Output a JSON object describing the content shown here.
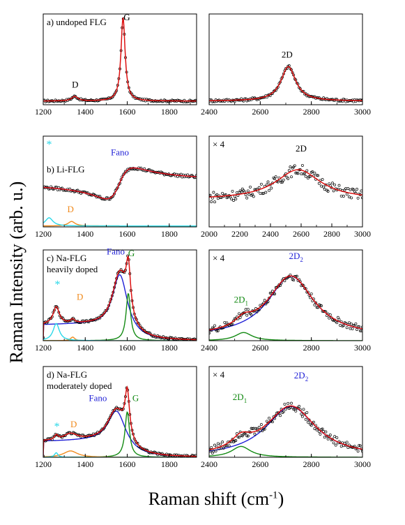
{
  "figure": {
    "ylabel": "Raman Intensity (arb. u.)",
    "xlabel_main": "Raman shift (cm",
    "xlabel_sup": "-1",
    "xlabel_end": ")"
  },
  "colors": {
    "data_points": "#000000",
    "fit_total": "#dd1111",
    "fano": "#1f1fd6",
    "lorentz_G": "#138a13",
    "D_band": "#f08a1c",
    "star_peak": "#2ad8e8"
  },
  "chart_data": [
    {
      "id": "a-left",
      "type": "line",
      "label": "a) undoped FLG",
      "xlim": [
        1200,
        1930
      ],
      "xticks": [
        1200,
        1400,
        1600,
        1800
      ],
      "annotations": [
        {
          "text": "D",
          "x": 1352,
          "y": 0.19
        },
        {
          "text": "G",
          "x": 1598,
          "y": 0.93
        }
      ],
      "series": [
        {
          "role": "data",
          "peaks": [
            [
              1580,
              12,
              0.92
            ],
            [
              1350,
              18,
              0.05
            ]
          ],
          "baseline": 0.04,
          "noise": 0.01
        },
        {
          "role": "fit",
          "peaks": [
            [
              1580,
              12,
              0.92
            ],
            [
              1350,
              18,
              0.05
            ]
          ],
          "baseline": 0.04
        }
      ]
    },
    {
      "id": "a-right",
      "type": "line",
      "label": "",
      "xlim": [
        2400,
        3000
      ],
      "xticks": [
        2400,
        2600,
        2800,
        3000
      ],
      "annotations": [
        {
          "text": "2D",
          "x": 2705,
          "y": 0.52
        }
      ],
      "series": [
        {
          "role": "data",
          "peaks": [
            [
              2710,
              35,
              0.38
            ]
          ],
          "baseline": 0.04,
          "noise": 0.015
        },
        {
          "role": "fit",
          "peaks": [
            [
              2710,
              35,
              0.38
            ]
          ],
          "baseline": 0.04
        }
      ]
    },
    {
      "id": "b-left",
      "type": "line",
      "label": "b) Li-FLG",
      "xlim": [
        1200,
        1930
      ],
      "xticks": [
        1200,
        1400,
        1600,
        1800
      ],
      "annotations": [
        {
          "text": "Fano",
          "x": 1565,
          "y": 0.79,
          "color": "fano"
        },
        {
          "text": "D",
          "x": 1330,
          "y": 0.16,
          "color": "D_band"
        },
        {
          "text": "*",
          "x": 1228,
          "y": 0.87,
          "color": "star_peak"
        }
      ],
      "series": [
        {
          "role": "data",
          "fano": {
            "x0": 1560,
            "w": 65,
            "q": -1.1,
            "A": 0.28,
            "off": 0.6
          },
          "noise": 0.015
        },
        {
          "role": "fano",
          "fano": {
            "x0": 1560,
            "w": 65,
            "q": -1.1,
            "A": 0.28,
            "off": 0.6
          }
        },
        {
          "role": "D",
          "peaks": [
            [
              1335,
              20,
              0.05
            ]
          ],
          "baseline": 0.01
        },
        {
          "role": "star",
          "peaks": [
            [
              1228,
              22,
              0.09
            ]
          ],
          "baseline": 0.01
        },
        {
          "role": "fit",
          "fano": {
            "x0": 1560,
            "w": 65,
            "q": -1.1,
            "A": 0.28,
            "off": 0.6
          }
        }
      ]
    },
    {
      "id": "b-right",
      "type": "line",
      "label": "× 4",
      "xlim": [
        2000,
        3000
      ],
      "xticks": [
        2000,
        2200,
        2400,
        2600,
        2800,
        3000
      ],
      "annotations": [
        {
          "text": "2D",
          "x": 2600,
          "y": 0.83
        }
      ],
      "series": [
        {
          "role": "data",
          "peaks": [
            [
              2580,
              180,
              0.33
            ]
          ],
          "baseline": 0.3,
          "noise": 0.06
        },
        {
          "role": "fit",
          "peaks": [
            [
              2580,
              180,
              0.33
            ]
          ],
          "baseline": 0.3
        }
      ]
    },
    {
      "id": "c-left",
      "type": "line",
      "label": "c) Na-FLG\nheavily doped",
      "xlim": [
        1200,
        1930
      ],
      "xticks": [
        1200,
        1400,
        1600,
        1800
      ],
      "annotations": [
        {
          "text": "Fano",
          "x": 1545,
          "y": 0.95,
          "color": "fano"
        },
        {
          "text": "G",
          "x": 1620,
          "y": 0.93,
          "color": "lorentz_G"
        },
        {
          "text": "D",
          "x": 1375,
          "y": 0.45,
          "color": "D_band"
        },
        {
          "text": "*",
          "x": 1268,
          "y": 0.58,
          "color": "star_peak"
        }
      ],
      "series": [
        {
          "role": "fano",
          "peaks": [
            [
              1565,
              45,
              0.68
            ]
          ],
          "shoulder": 0.17
        },
        {
          "role": "G",
          "peaks": [
            [
              1605,
              13,
              0.52
            ]
          ],
          "baseline": 0.0
        },
        {
          "role": "D",
          "peaks": [
            [
              1340,
              12,
              0.04
            ]
          ],
          "baseline": 0.0
        },
        {
          "role": "star",
          "peaks": [
            [
              1262,
              18,
              0.19
            ]
          ],
          "baseline": 0.0
        },
        {
          "role": "data",
          "peaks": [
            [
              1565,
              45,
              0.68
            ],
            [
              1605,
              13,
              0.52
            ],
            [
              1262,
              18,
              0.19
            ],
            [
              1340,
              12,
              0.04
            ]
          ],
          "shoulder": 0.17,
          "noise": 0.012
        },
        {
          "role": "fit",
          "peaks": [
            [
              1565,
              45,
              0.68
            ],
            [
              1605,
              13,
              0.52
            ],
            [
              1262,
              18,
              0.19
            ],
            [
              1340,
              12,
              0.04
            ]
          ],
          "shoulder": 0.17
        }
      ]
    },
    {
      "id": "c-right",
      "type": "line",
      "label": "× 4",
      "xlim": [
        2400,
        3000
      ],
      "xticks": [
        2400,
        2600,
        2800,
        3000
      ],
      "annotations": [
        {
          "text": "2D",
          "sub": "1",
          "x": 2525,
          "y": 0.42,
          "color": "lorentz_G"
        },
        {
          "text": "2D",
          "sub": "2",
          "x": 2740,
          "y": 0.9,
          "color": "fano"
        }
      ],
      "series": [
        {
          "role": "fano",
          "peaks": [
            [
              2720,
              110,
              0.67
            ]
          ],
          "baseline": 0.04
        },
        {
          "role": "G",
          "peaks": [
            [
              2535,
              40,
              0.09
            ]
          ],
          "baseline": 0.0
        },
        {
          "role": "data",
          "peaks": [
            [
              2720,
              110,
              0.67
            ],
            [
              2535,
              40,
              0.09
            ]
          ],
          "baseline": 0.04,
          "noise": 0.04
        },
        {
          "role": "fit",
          "peaks": [
            [
              2720,
              110,
              0.67
            ],
            [
              2535,
              40,
              0.09
            ]
          ],
          "baseline": 0.04
        }
      ]
    },
    {
      "id": "d-left",
      "type": "line",
      "label": "d) Na-FLG\nmoderately doped",
      "xlim": [
        1200,
        1930
      ],
      "xticks": [
        1200,
        1400,
        1600,
        1800
      ],
      "annotations": [
        {
          "text": "Fano",
          "x": 1460,
          "y": 0.62,
          "color": "fano"
        },
        {
          "text": "G",
          "x": 1640,
          "y": 0.62,
          "color": "lorentz_G"
        },
        {
          "text": "D",
          "x": 1345,
          "y": 0.33,
          "color": "D_band"
        },
        {
          "text": "*",
          "x": 1265,
          "y": 0.3,
          "color": "star_peak"
        }
      ],
      "series": [
        {
          "role": "fano",
          "peaks": [
            [
              1550,
              55,
              0.45
            ]
          ],
          "shoulder": 0.17
        },
        {
          "role": "G",
          "peaks": [
            [
              1600,
              13,
              0.5
            ]
          ],
          "baseline": 0.0
        },
        {
          "role": "D",
          "peaks": [
            [
              1330,
              40,
              0.07
            ]
          ],
          "baseline": 0.0
        },
        {
          "role": "star",
          "peaks": [
            [
              1262,
              10,
              0.05
            ]
          ],
          "baseline": 0.0
        },
        {
          "role": "data",
          "peaks": [
            [
              1550,
              55,
              0.45
            ],
            [
              1600,
              13,
              0.5
            ],
            [
              1330,
              40,
              0.07
            ],
            [
              1262,
              10,
              0.05
            ]
          ],
          "shoulder": 0.17,
          "noise": 0.012
        },
        {
          "role": "fit",
          "peaks": [
            [
              1550,
              55,
              0.45
            ],
            [
              1600,
              13,
              0.5
            ],
            [
              1330,
              40,
              0.07
            ],
            [
              1262,
              10,
              0.05
            ]
          ],
          "shoulder": 0.17
        }
      ]
    },
    {
      "id": "d-right",
      "type": "line",
      "label": "× 4",
      "xlim": [
        2400,
        3000
      ],
      "xticks": [
        2400,
        2600,
        2800,
        3000
      ],
      "annotations": [
        {
          "text": "2D",
          "sub": "1",
          "x": 2520,
          "y": 0.63,
          "color": "lorentz_G"
        },
        {
          "text": "2D",
          "sub": "2",
          "x": 2760,
          "y": 0.87,
          "color": "fano"
        }
      ],
      "series": [
        {
          "role": "fano",
          "peaks": [
            [
              2720,
              120,
              0.56
            ]
          ],
          "baseline": 0.0
        },
        {
          "role": "G",
          "peaks": [
            [
              2525,
              45,
              0.12
            ]
          ],
          "baseline": 0.0
        },
        {
          "role": "data",
          "peaks": [
            [
              2720,
              120,
              0.56
            ],
            [
              2525,
              45,
              0.12
            ]
          ],
          "baseline": 0.0,
          "noise": 0.05
        },
        {
          "role": "fit",
          "peaks": [
            [
              2720,
              120,
              0.56
            ],
            [
              2525,
              45,
              0.12
            ]
          ],
          "baseline": 0.0
        }
      ]
    }
  ]
}
